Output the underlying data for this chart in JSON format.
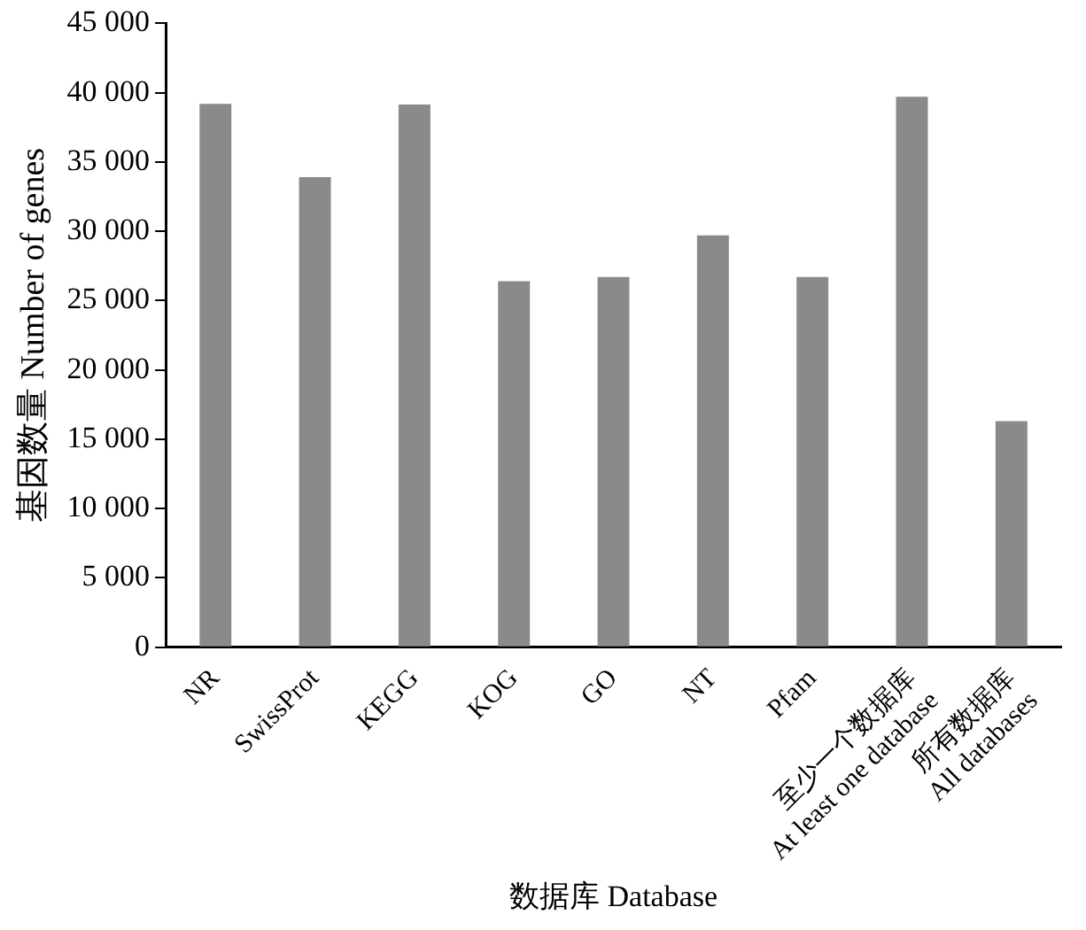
{
  "chart_data": {
    "type": "bar",
    "xlabel": "数据库 Database",
    "ylabel": "基因数量 Number of genes",
    "categories": [
      "NR",
      "SwissProt",
      "KEGG",
      "KOG",
      "GO",
      "NT",
      "Pfam",
      "至少一个数据库\nAt least one database",
      "所有数据库\nAll databases"
    ],
    "values": [
      39200,
      33900,
      39150,
      26400,
      26700,
      29700,
      26700,
      39700,
      16300
    ],
    "color": "#8a8a8a",
    "ylim": [
      0,
      45000
    ],
    "yticks": [
      {
        "value": 0,
        "label": "0"
      },
      {
        "value": 5000,
        "label": "5 000"
      },
      {
        "value": 10000,
        "label": "10 000"
      },
      {
        "value": 15000,
        "label": "15 000"
      },
      {
        "value": 20000,
        "label": "20 000"
      },
      {
        "value": 25000,
        "label": "25 000"
      },
      {
        "value": 30000,
        "label": "30 000"
      },
      {
        "value": 35000,
        "label": "35 000"
      },
      {
        "value": 40000,
        "label": "40 000"
      },
      {
        "value": 45000,
        "label": "45 000"
      }
    ],
    "grid": false,
    "legend": false
  }
}
